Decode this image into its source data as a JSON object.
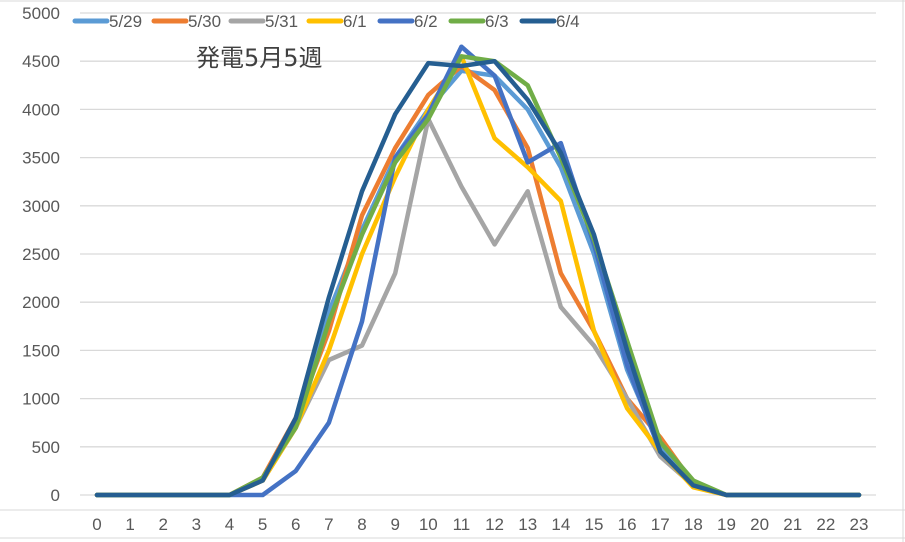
{
  "chart_data": {
    "type": "line",
    "title": "発電5月5週",
    "xlabel": "",
    "ylabel": "",
    "x": [
      0,
      1,
      2,
      3,
      4,
      5,
      6,
      7,
      8,
      9,
      10,
      11,
      12,
      13,
      14,
      15,
      16,
      17,
      18,
      19,
      20,
      21,
      22,
      23
    ],
    "ylim": [
      0,
      5000
    ],
    "yticks": [
      0,
      500,
      1000,
      1500,
      2000,
      2500,
      3000,
      3500,
      4000,
      4500,
      5000
    ],
    "grid": true,
    "legend_position": "top",
    "series": [
      {
        "name": "5/29",
        "color": "#5B9BD5",
        "values": [
          0,
          0,
          0,
          0,
          0,
          150,
          750,
          1900,
          2750,
          3500,
          4000,
          4400,
          4350,
          4000,
          3400,
          2500,
          1300,
          500,
          100,
          0,
          0,
          0,
          0,
          0
        ]
      },
      {
        "name": "5/30",
        "color": "#ED7D31",
        "values": [
          0,
          0,
          0,
          0,
          0,
          180,
          800,
          1700,
          2900,
          3600,
          4150,
          4450,
          4200,
          3600,
          2300,
          1700,
          1000,
          600,
          120,
          0,
          0,
          0,
          0,
          0
        ]
      },
      {
        "name": "5/31",
        "color": "#A5A5A5",
        "values": [
          0,
          0,
          0,
          0,
          0,
          150,
          700,
          1400,
          1550,
          2300,
          3900,
          3200,
          2600,
          3150,
          1950,
          1550,
          1000,
          400,
          100,
          0,
          0,
          0,
          0,
          0
        ]
      },
      {
        "name": "6/1",
        "color": "#FFC000",
        "values": [
          0,
          0,
          0,
          0,
          0,
          150,
          700,
          1500,
          2500,
          3300,
          4000,
          4550,
          3700,
          3400,
          3050,
          1700,
          900,
          450,
          80,
          0,
          0,
          0,
          0,
          0
        ]
      },
      {
        "name": "6/2",
        "color": "#4472C4",
        "values": [
          0,
          0,
          0,
          0,
          0,
          0,
          250,
          750,
          1800,
          3500,
          3950,
          4650,
          4350,
          3450,
          3650,
          2600,
          1350,
          450,
          100,
          0,
          0,
          0,
          0,
          0
        ]
      },
      {
        "name": "6/3",
        "color": "#70AD47",
        "values": [
          0,
          0,
          0,
          0,
          0,
          180,
          700,
          1800,
          2700,
          3450,
          3900,
          4550,
          4500,
          4250,
          3500,
          2650,
          1600,
          550,
          150,
          0,
          0,
          0,
          0,
          0
        ]
      },
      {
        "name": "6/4",
        "color": "#255E91",
        "values": [
          0,
          0,
          0,
          0,
          0,
          150,
          800,
          2050,
          3150,
          3950,
          4480,
          4450,
          4500,
          4100,
          3550,
          2700,
          1500,
          450,
          100,
          0,
          0,
          0,
          0,
          0
        ]
      }
    ]
  },
  "legend": {
    "items": [
      "5/29",
      "5/30",
      "5/31",
      "6/1",
      "6/2",
      "6/3",
      "6/4"
    ]
  },
  "title": "発電5月5週"
}
